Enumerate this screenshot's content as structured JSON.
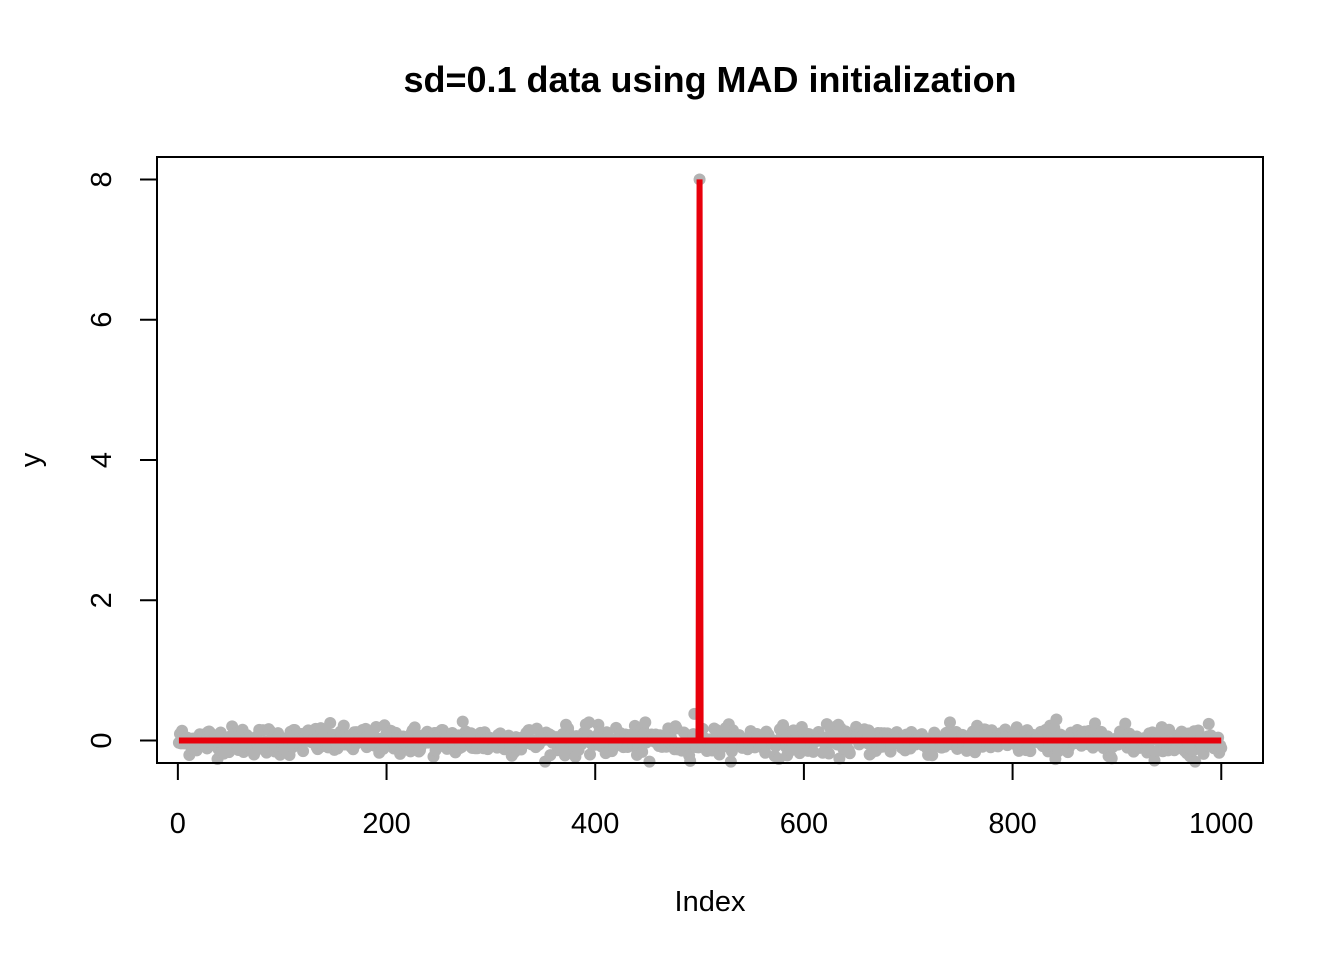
{
  "chart_data": {
    "type": "scatter",
    "title": "sd=0.1 data using MAD initialization",
    "xlabel": "Index",
    "ylabel": "y",
    "xlim": [
      -20,
      1040
    ],
    "ylim": [
      -0.32,
      8.32
    ],
    "x_ticks": [
      0,
      200,
      400,
      600,
      800,
      1000
    ],
    "y_ticks": [
      0,
      2,
      4,
      6,
      8
    ],
    "grid": false,
    "legend": "none",
    "series": [
      {
        "kind": "points",
        "color": "#b3b3b3",
        "n": 1000,
        "noise_sd": 0.1,
        "outliers": [
          {
            "x": 500,
            "y": 8.0
          },
          {
            "x": 495,
            "y": 0.38
          },
          {
            "x": 273,
            "y": 0.27
          },
          {
            "x": 842,
            "y": 0.3
          },
          {
            "x": 452,
            "y": -0.3
          },
          {
            "x": 975,
            "y": -0.3
          }
        ]
      },
      {
        "kind": "line",
        "color": "#e8000b",
        "x": [
          1,
          499,
          500,
          501,
          1000
        ],
        "y": [
          0,
          0,
          8.0,
          0,
          0
        ]
      }
    ]
  }
}
